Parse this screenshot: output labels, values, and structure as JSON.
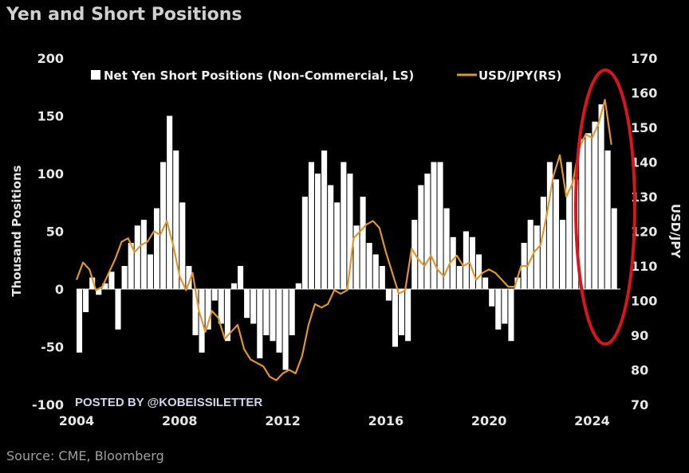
{
  "title": "Yen and Short Positions",
  "source": "Source: CME, Bloomberg",
  "watermark": "POSTED BY @KOBEISSILETTER",
  "chart_data": {
    "type": "bar+line",
    "ylabel": "Thousand Positions",
    "y2label": "USD/JPY",
    "ylim": [
      -100,
      200
    ],
    "y2lim": [
      70,
      170
    ],
    "xlim": [
      2004,
      2025.1
    ],
    "yticks": [
      -100,
      -50,
      0,
      50,
      100,
      150,
      200
    ],
    "y2ticks": [
      70,
      80,
      90,
      100,
      110,
      120,
      130,
      140,
      150,
      160,
      170
    ],
    "xticks": [
      2004,
      2008,
      2012,
      2016,
      2020,
      2024
    ],
    "legend_placement": "top",
    "grid": false,
    "series": [
      {
        "name": "Net Yen Short Positions (Non-Commercial, LS)",
        "axis": "left",
        "type": "bar",
        "color": "#ffffff",
        "x": [
          2004.0,
          2004.25,
          2004.5,
          2004.75,
          2005.0,
          2005.25,
          2005.5,
          2005.75,
          2006.0,
          2006.25,
          2006.5,
          2006.75,
          2007.0,
          2007.25,
          2007.5,
          2007.75,
          2008.0,
          2008.25,
          2008.5,
          2008.75,
          2009.0,
          2009.25,
          2009.5,
          2009.75,
          2010.0,
          2010.25,
          2010.5,
          2010.75,
          2011.0,
          2011.25,
          2011.5,
          2011.75,
          2012.0,
          2012.25,
          2012.5,
          2012.75,
          2013.0,
          2013.25,
          2013.5,
          2013.75,
          2014.0,
          2014.25,
          2014.5,
          2014.75,
          2015.0,
          2015.25,
          2015.5,
          2015.75,
          2016.0,
          2016.25,
          2016.5,
          2016.75,
          2017.0,
          2017.25,
          2017.5,
          2017.75,
          2018.0,
          2018.25,
          2018.5,
          2018.75,
          2019.0,
          2019.25,
          2019.5,
          2019.75,
          2020.0,
          2020.25,
          2020.5,
          2020.75,
          2021.0,
          2021.25,
          2021.5,
          2021.75,
          2022.0,
          2022.25,
          2022.5,
          2022.75,
          2023.0,
          2023.25,
          2023.5,
          2023.75,
          2024.0,
          2024.25,
          2024.5,
          2024.75
        ],
        "values": [
          -55,
          -20,
          10,
          -5,
          5,
          15,
          -35,
          20,
          40,
          55,
          60,
          30,
          70,
          110,
          150,
          120,
          75,
          20,
          -40,
          -55,
          -35,
          -10,
          -30,
          -45,
          5,
          20,
          -25,
          -30,
          -60,
          -40,
          -45,
          -55,
          -70,
          -40,
          5,
          80,
          110,
          100,
          120,
          90,
          75,
          110,
          100,
          55,
          80,
          40,
          30,
          20,
          -10,
          -50,
          -40,
          -45,
          60,
          90,
          100,
          110,
          110,
          70,
          45,
          20,
          50,
          45,
          30,
          10,
          -15,
          -35,
          -30,
          -45,
          10,
          40,
          60,
          55,
          80,
          110,
          95,
          60,
          110,
          95,
          130,
          135,
          145,
          160,
          120,
          70
        ]
      },
      {
        "name": "USD/JPY(RS)",
        "axis": "right",
        "type": "line",
        "color": "#e0962b",
        "x": [
          2004.0,
          2004.25,
          2004.5,
          2004.75,
          2005.0,
          2005.25,
          2005.5,
          2005.75,
          2006.0,
          2006.25,
          2006.5,
          2006.75,
          2007.0,
          2007.25,
          2007.5,
          2007.75,
          2008.0,
          2008.25,
          2008.5,
          2008.75,
          2009.0,
          2009.25,
          2009.5,
          2009.75,
          2010.0,
          2010.25,
          2010.5,
          2010.75,
          2011.0,
          2011.25,
          2011.5,
          2011.75,
          2012.0,
          2012.25,
          2012.5,
          2012.75,
          2013.0,
          2013.25,
          2013.5,
          2013.75,
          2014.0,
          2014.25,
          2014.5,
          2014.75,
          2015.0,
          2015.25,
          2015.5,
          2015.75,
          2016.0,
          2016.25,
          2016.5,
          2016.75,
          2017.0,
          2017.25,
          2017.5,
          2017.75,
          2018.0,
          2018.25,
          2018.5,
          2018.75,
          2019.0,
          2019.25,
          2019.5,
          2019.75,
          2020.0,
          2020.25,
          2020.5,
          2020.75,
          2021.0,
          2021.25,
          2021.5,
          2021.75,
          2022.0,
          2022.25,
          2022.5,
          2022.75,
          2023.0,
          2023.25,
          2023.5,
          2023.75,
          2024.0,
          2024.25,
          2024.5,
          2024.75
        ],
        "values": [
          106,
          111,
          109,
          103,
          104,
          108,
          112,
          117,
          118,
          114,
          116,
          117,
          120,
          119,
          123,
          116,
          107,
          103,
          108,
          97,
          91,
          97,
          95,
          89,
          91,
          93,
          86,
          83,
          82,
          81,
          78,
          77,
          79,
          80,
          79,
          84,
          93,
          99,
          98,
          99,
          103,
          102,
          103,
          118,
          120,
          122,
          123,
          121,
          114,
          108,
          102,
          103,
          115,
          112,
          110,
          113,
          109,
          107,
          111,
          113,
          110,
          111,
          106,
          108,
          109,
          108,
          106,
          104,
          104,
          110,
          110,
          114,
          116,
          125,
          136,
          142,
          130,
          134,
          144,
          148,
          147,
          151,
          158,
          145
        ]
      }
    ]
  }
}
